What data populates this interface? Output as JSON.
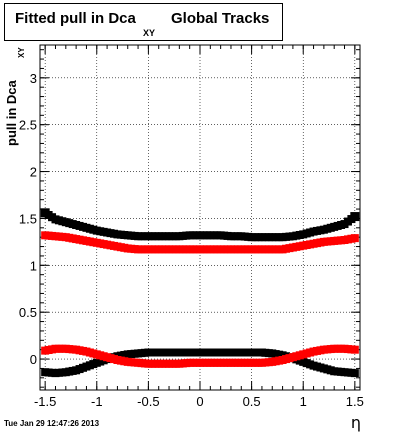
{
  "title": {
    "main": "Fitted pull in Dca",
    "subscript": "XY",
    "rest": "Global Tracks"
  },
  "footer": "Tue Jan 29 12:47:26 2013",
  "chart_data": {
    "type": "scatter",
    "xlabel": "η",
    "ylabel": "pull in Dca",
    "ylabel_subscript": "XY",
    "xlim": [
      -1.55,
      1.55
    ],
    "ylim": [
      -0.33,
      3.35
    ],
    "xticks": [
      -1.5,
      -1,
      -0.5,
      0,
      0.5,
      1,
      1.5
    ],
    "xtick_labels": [
      "-1.5",
      "-1",
      "-0.5",
      "0",
      "0.5",
      "1",
      "1.5"
    ],
    "yticks": [
      0,
      0.5,
      1,
      1.5,
      2,
      2.5,
      3
    ],
    "ytick_labels": [
      "0",
      "0.5",
      "1",
      "1.5",
      "2",
      "2.5",
      "3"
    ],
    "grid": true,
    "series": [
      {
        "color": "#000000",
        "marker": "square",
        "x": [
          -1.5,
          -1.4,
          -1.3,
          -1.2,
          -1.1,
          -1.0,
          -0.9,
          -0.8,
          -0.7,
          -0.6,
          -0.5,
          -0.4,
          -0.3,
          -0.2,
          -0.1,
          0.0,
          0.1,
          0.2,
          0.3,
          0.4,
          0.5,
          0.6,
          0.7,
          0.8,
          0.9,
          1.0,
          1.1,
          1.2,
          1.3,
          1.4,
          1.5
        ],
        "y": [
          1.56,
          1.49,
          1.46,
          1.43,
          1.4,
          1.37,
          1.35,
          1.33,
          1.32,
          1.31,
          1.31,
          1.31,
          1.31,
          1.31,
          1.32,
          1.32,
          1.32,
          1.32,
          1.31,
          1.31,
          1.3,
          1.3,
          1.3,
          1.3,
          1.31,
          1.33,
          1.36,
          1.38,
          1.41,
          1.44,
          1.52
        ]
      },
      {
        "color": "#ff0000",
        "marker": "square",
        "x": [
          -1.5,
          -1.4,
          -1.3,
          -1.2,
          -1.1,
          -1.0,
          -0.9,
          -0.8,
          -0.7,
          -0.6,
          -0.5,
          -0.4,
          -0.3,
          -0.2,
          -0.1,
          0.0,
          0.1,
          0.2,
          0.3,
          0.4,
          0.5,
          0.6,
          0.7,
          0.8,
          0.9,
          1.0,
          1.1,
          1.2,
          1.3,
          1.4,
          1.5
        ],
        "y": [
          1.32,
          1.31,
          1.3,
          1.28,
          1.26,
          1.24,
          1.22,
          1.2,
          1.18,
          1.17,
          1.17,
          1.17,
          1.17,
          1.17,
          1.17,
          1.17,
          1.17,
          1.17,
          1.17,
          1.17,
          1.17,
          1.17,
          1.17,
          1.17,
          1.19,
          1.21,
          1.23,
          1.25,
          1.26,
          1.27,
          1.29
        ]
      },
      {
        "color": "#000000",
        "marker": "square",
        "x": [
          -1.5,
          -1.4,
          -1.3,
          -1.2,
          -1.1,
          -1.0,
          -0.9,
          -0.8,
          -0.7,
          -0.6,
          -0.5,
          -0.4,
          -0.3,
          -0.2,
          -0.1,
          0.0,
          0.1,
          0.2,
          0.3,
          0.4,
          0.5,
          0.6,
          0.7,
          0.8,
          0.9,
          1.0,
          1.1,
          1.2,
          1.3,
          1.4,
          1.5
        ],
        "y": [
          -0.14,
          -0.15,
          -0.14,
          -0.12,
          -0.08,
          -0.04,
          0.0,
          0.03,
          0.05,
          0.06,
          0.07,
          0.07,
          0.07,
          0.07,
          0.07,
          0.07,
          0.07,
          0.07,
          0.07,
          0.07,
          0.07,
          0.07,
          0.06,
          0.04,
          0.01,
          -0.03,
          -0.07,
          -0.1,
          -0.13,
          -0.14,
          -0.15
        ]
      },
      {
        "color": "#ff0000",
        "marker": "square",
        "x": [
          -1.5,
          -1.4,
          -1.3,
          -1.2,
          -1.1,
          -1.0,
          -0.9,
          -0.8,
          -0.7,
          -0.6,
          -0.5,
          -0.4,
          -0.3,
          -0.2,
          -0.1,
          0.0,
          0.1,
          0.2,
          0.3,
          0.4,
          0.5,
          0.6,
          0.7,
          0.8,
          0.9,
          1.0,
          1.1,
          1.2,
          1.3,
          1.4,
          1.5
        ],
        "y": [
          0.09,
          0.11,
          0.11,
          0.1,
          0.08,
          0.05,
          0.02,
          -0.01,
          -0.03,
          -0.04,
          -0.05,
          -0.05,
          -0.05,
          -0.05,
          -0.04,
          -0.04,
          -0.04,
          -0.04,
          -0.04,
          -0.04,
          -0.04,
          -0.04,
          -0.03,
          -0.01,
          0.02,
          0.05,
          0.08,
          0.1,
          0.11,
          0.11,
          0.1
        ]
      }
    ]
  }
}
